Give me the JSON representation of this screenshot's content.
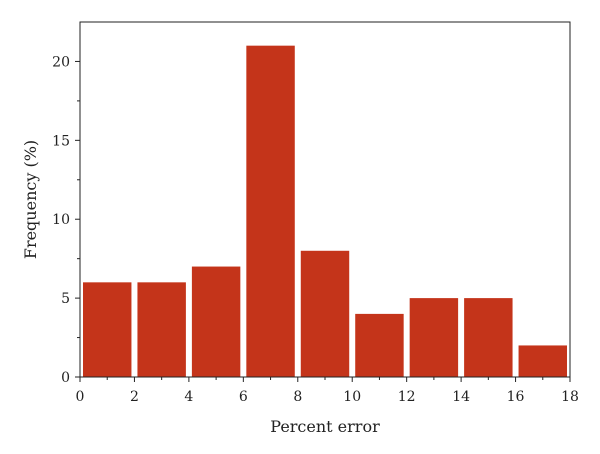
{
  "chart_data": {
    "type": "bar",
    "xlabel": "Percent error",
    "ylabel": "Frequency (%)",
    "xlim": [
      0,
      18
    ],
    "ylim": [
      0,
      22.5
    ],
    "x_ticks": [
      0,
      2,
      4,
      6,
      8,
      10,
      12,
      14,
      16,
      18
    ],
    "y_ticks": [
      0,
      5,
      10,
      15,
      20
    ],
    "bins": [
      {
        "x0": 0,
        "x1": 2,
        "value": 6
      },
      {
        "x0": 2,
        "x1": 4,
        "value": 6
      },
      {
        "x0": 4,
        "x1": 6,
        "value": 7
      },
      {
        "x0": 6,
        "x1": 8,
        "value": 21
      },
      {
        "x0": 8,
        "x1": 10,
        "value": 8
      },
      {
        "x0": 10,
        "x1": 12,
        "value": 4
      },
      {
        "x0": 12,
        "x1": 14,
        "value": 5
      },
      {
        "x0": 14,
        "x1": 16,
        "value": 5
      },
      {
        "x0": 16,
        "x1": 18,
        "value": 2
      }
    ],
    "bar_color": "#c4341a",
    "grid": false,
    "legend": "none"
  }
}
